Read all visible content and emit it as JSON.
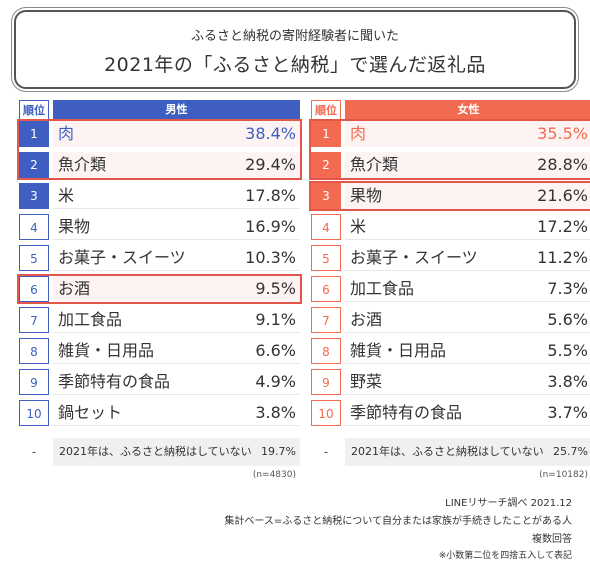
{
  "title": {
    "subtitle": "ふるさと納税の寄附経験者に聞いた",
    "main": "2021年の「ふるさと納税」で選んだ返礼品"
  },
  "chart_data": {
    "type": "table",
    "rank_header": "順位",
    "tables": [
      {
        "key": "male",
        "header": "男性",
        "color": "#3e5fc1",
        "tint": "#fdf3f3",
        "rows": [
          {
            "rank": "1",
            "item": "肉",
            "value": "38.4%"
          },
          {
            "rank": "2",
            "item": "魚介類",
            "value": "29.4%"
          },
          {
            "rank": "3",
            "item": "米",
            "value": "17.8%"
          },
          {
            "rank": "4",
            "item": "果物",
            "value": "16.9%"
          },
          {
            "rank": "5",
            "item": "お菓子・スイーツ",
            "value": "10.3%"
          },
          {
            "rank": "6",
            "item": "お酒",
            "value": "9.5%"
          },
          {
            "rank": "7",
            "item": "加工食品",
            "value": "9.1%"
          },
          {
            "rank": "8",
            "item": "雑貨・日用品",
            "value": "6.6%"
          },
          {
            "rank": "9",
            "item": "季節特有の食品",
            "value": "4.9%"
          },
          {
            "rank": "10",
            "item": "鍋セット",
            "value": "3.8%"
          }
        ],
        "filled_ranks": 3,
        "highlight_ranks": [
          1,
          2,
          6
        ],
        "highlight_groups": [
          [
            0,
            1
          ],
          [
            5,
            5
          ]
        ],
        "none_row": {
          "rank": "-",
          "item": "2021年は、ふるさと納税はしていない",
          "value": "19.7%"
        },
        "n": "(n=4830)"
      },
      {
        "key": "female",
        "header": "女性",
        "color": "#f26b50",
        "tint": "#fdf3f3",
        "rows": [
          {
            "rank": "1",
            "item": "肉",
            "value": "35.5%"
          },
          {
            "rank": "2",
            "item": "魚介類",
            "value": "28.8%"
          },
          {
            "rank": "3",
            "item": "果物",
            "value": "21.6%"
          },
          {
            "rank": "4",
            "item": "米",
            "value": "17.2%"
          },
          {
            "rank": "5",
            "item": "お菓子・スイーツ",
            "value": "11.2%"
          },
          {
            "rank": "6",
            "item": "加工食品",
            "value": "7.3%"
          },
          {
            "rank": "7",
            "item": "お酒",
            "value": "5.6%"
          },
          {
            "rank": "8",
            "item": "雑貨・日用品",
            "value": "5.5%"
          },
          {
            "rank": "9",
            "item": "野菜",
            "value": "3.8%"
          },
          {
            "rank": "10",
            "item": "季節特有の食品",
            "value": "3.7%"
          }
        ],
        "filled_ranks": 3,
        "highlight_ranks": [
          1,
          2,
          3
        ],
        "highlight_groups": [
          [
            0,
            1
          ],
          [
            2,
            2
          ]
        ],
        "none_row": {
          "rank": "-",
          "item": "2021年は、ふるさと納税はしていない",
          "value": "25.7%"
        },
        "n": "(n=10182)"
      }
    ]
  },
  "footer": {
    "source": "LINEリサーチ調べ 2021.12",
    "base": "集計ベース=ふるさと納税について自分または家族が手続きしたことがある人",
    "multi": "複数回答",
    "note": "※小数第二位を四捨五入して表記"
  }
}
